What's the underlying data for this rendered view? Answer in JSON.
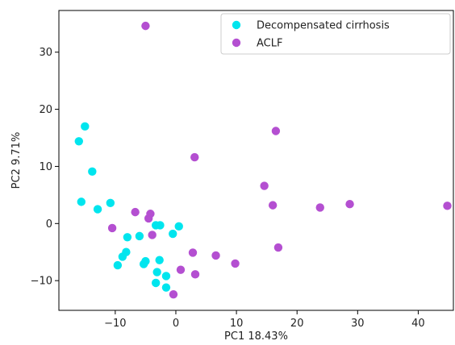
{
  "chart_data": {
    "type": "scatter",
    "title": "",
    "xlabel": "PC1 18.43%",
    "ylabel": "PC2 9.71%",
    "xlim": [
      -19.3,
      45.8
    ],
    "ylim": [
      -15.2,
      37.3
    ],
    "xticks": [
      -10,
      0,
      10,
      20,
      30,
      40
    ],
    "yticks": [
      -10,
      0,
      10,
      20,
      30
    ],
    "grid": false,
    "legend_position": "top-right",
    "series": [
      {
        "name": "Decompensated cirrhosis",
        "color": "#00e5ee",
        "points": [
          [
            -15.0,
            17.0
          ],
          [
            -16.0,
            14.4
          ],
          [
            -13.8,
            9.1
          ],
          [
            -15.6,
            3.8
          ],
          [
            -12.9,
            2.5
          ],
          [
            -10.8,
            3.6
          ],
          [
            -8.0,
            -2.4
          ],
          [
            -6.0,
            -2.2
          ],
          [
            -8.2,
            -5.0
          ],
          [
            -8.8,
            -5.8
          ],
          [
            -9.6,
            -7.3
          ],
          [
            -5.0,
            -6.6
          ],
          [
            -5.3,
            -7.1
          ],
          [
            -3.3,
            -0.3
          ],
          [
            -2.6,
            -0.3
          ],
          [
            0.5,
            -0.5
          ],
          [
            -0.5,
            -1.8
          ],
          [
            -2.7,
            -6.4
          ],
          [
            -3.1,
            -8.5
          ],
          [
            -1.6,
            -9.2
          ],
          [
            -3.3,
            -10.4
          ],
          [
            -1.6,
            -11.2
          ]
        ]
      },
      {
        "name": "ACLF",
        "color": "#b44fd1",
        "points": [
          [
            -5.0,
            34.6
          ],
          [
            -10.5,
            -0.8
          ],
          [
            -6.7,
            2.0
          ],
          [
            -4.5,
            0.9
          ],
          [
            -4.2,
            1.7
          ],
          [
            -3.9,
            -2.0
          ],
          [
            3.1,
            11.6
          ],
          [
            16.5,
            16.2
          ],
          [
            14.6,
            6.6
          ],
          [
            16.0,
            3.2
          ],
          [
            23.8,
            2.8
          ],
          [
            28.7,
            3.4
          ],
          [
            44.8,
            3.1
          ],
          [
            16.9,
            -4.2
          ],
          [
            2.8,
            -5.1
          ],
          [
            6.6,
            -5.6
          ],
          [
            9.8,
            -7.0
          ],
          [
            0.8,
            -8.1
          ],
          [
            3.2,
            -8.9
          ],
          [
            -0.4,
            -12.4
          ]
        ]
      }
    ]
  }
}
